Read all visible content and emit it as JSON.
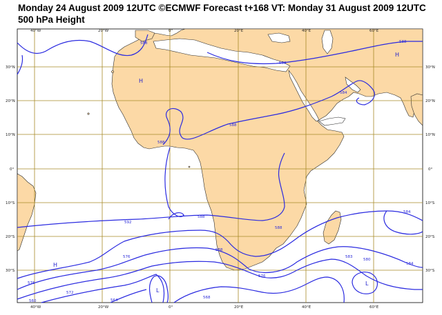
{
  "header": {
    "title_line1": "Monday 24 August 2009 12UTC ©ECMWF Forecast t+168 VT: Monday 31 August 2009 12UTC",
    "title_line2": "500 hPa Height"
  },
  "colors": {
    "land": "#fcd9a6",
    "ocean": "#ffffff",
    "contour": "#2a2ae0",
    "grid": "#a88a28",
    "coast": "#2a2a2a"
  },
  "axes": {
    "top_lon_labels": [
      "40°W",
      "20°W",
      "0°",
      "20°E",
      "40°E",
      "60°E"
    ],
    "bottom_lon_labels": [
      "40°W",
      "20°W",
      "0°",
      "20°E",
      "40°E",
      "60°E"
    ],
    "left_lat_labels": [
      "30°N",
      "20°N",
      "10°N",
      "0°",
      "10°S",
      "20°S",
      "30°S"
    ],
    "right_lat_labels": [
      "30°N",
      "20°N",
      "10°N",
      "0°",
      "10°S",
      "20°S",
      "30°S"
    ]
  },
  "contour_labels": [
    "588",
    "588",
    "588",
    "584",
    "588",
    "588",
    "592",
    "588",
    "588",
    "584",
    "580",
    "576",
    "576",
    "576",
    "572",
    "568",
    "564",
    "560",
    "584",
    "583",
    "588"
  ],
  "pressure_centers": [
    {
      "label": "H",
      "kind": "high"
    },
    {
      "label": "H",
      "kind": "high"
    },
    {
      "label": "H",
      "kind": "high"
    },
    {
      "label": "L",
      "kind": "low"
    },
    {
      "label": "L",
      "kind": "low"
    }
  ]
}
